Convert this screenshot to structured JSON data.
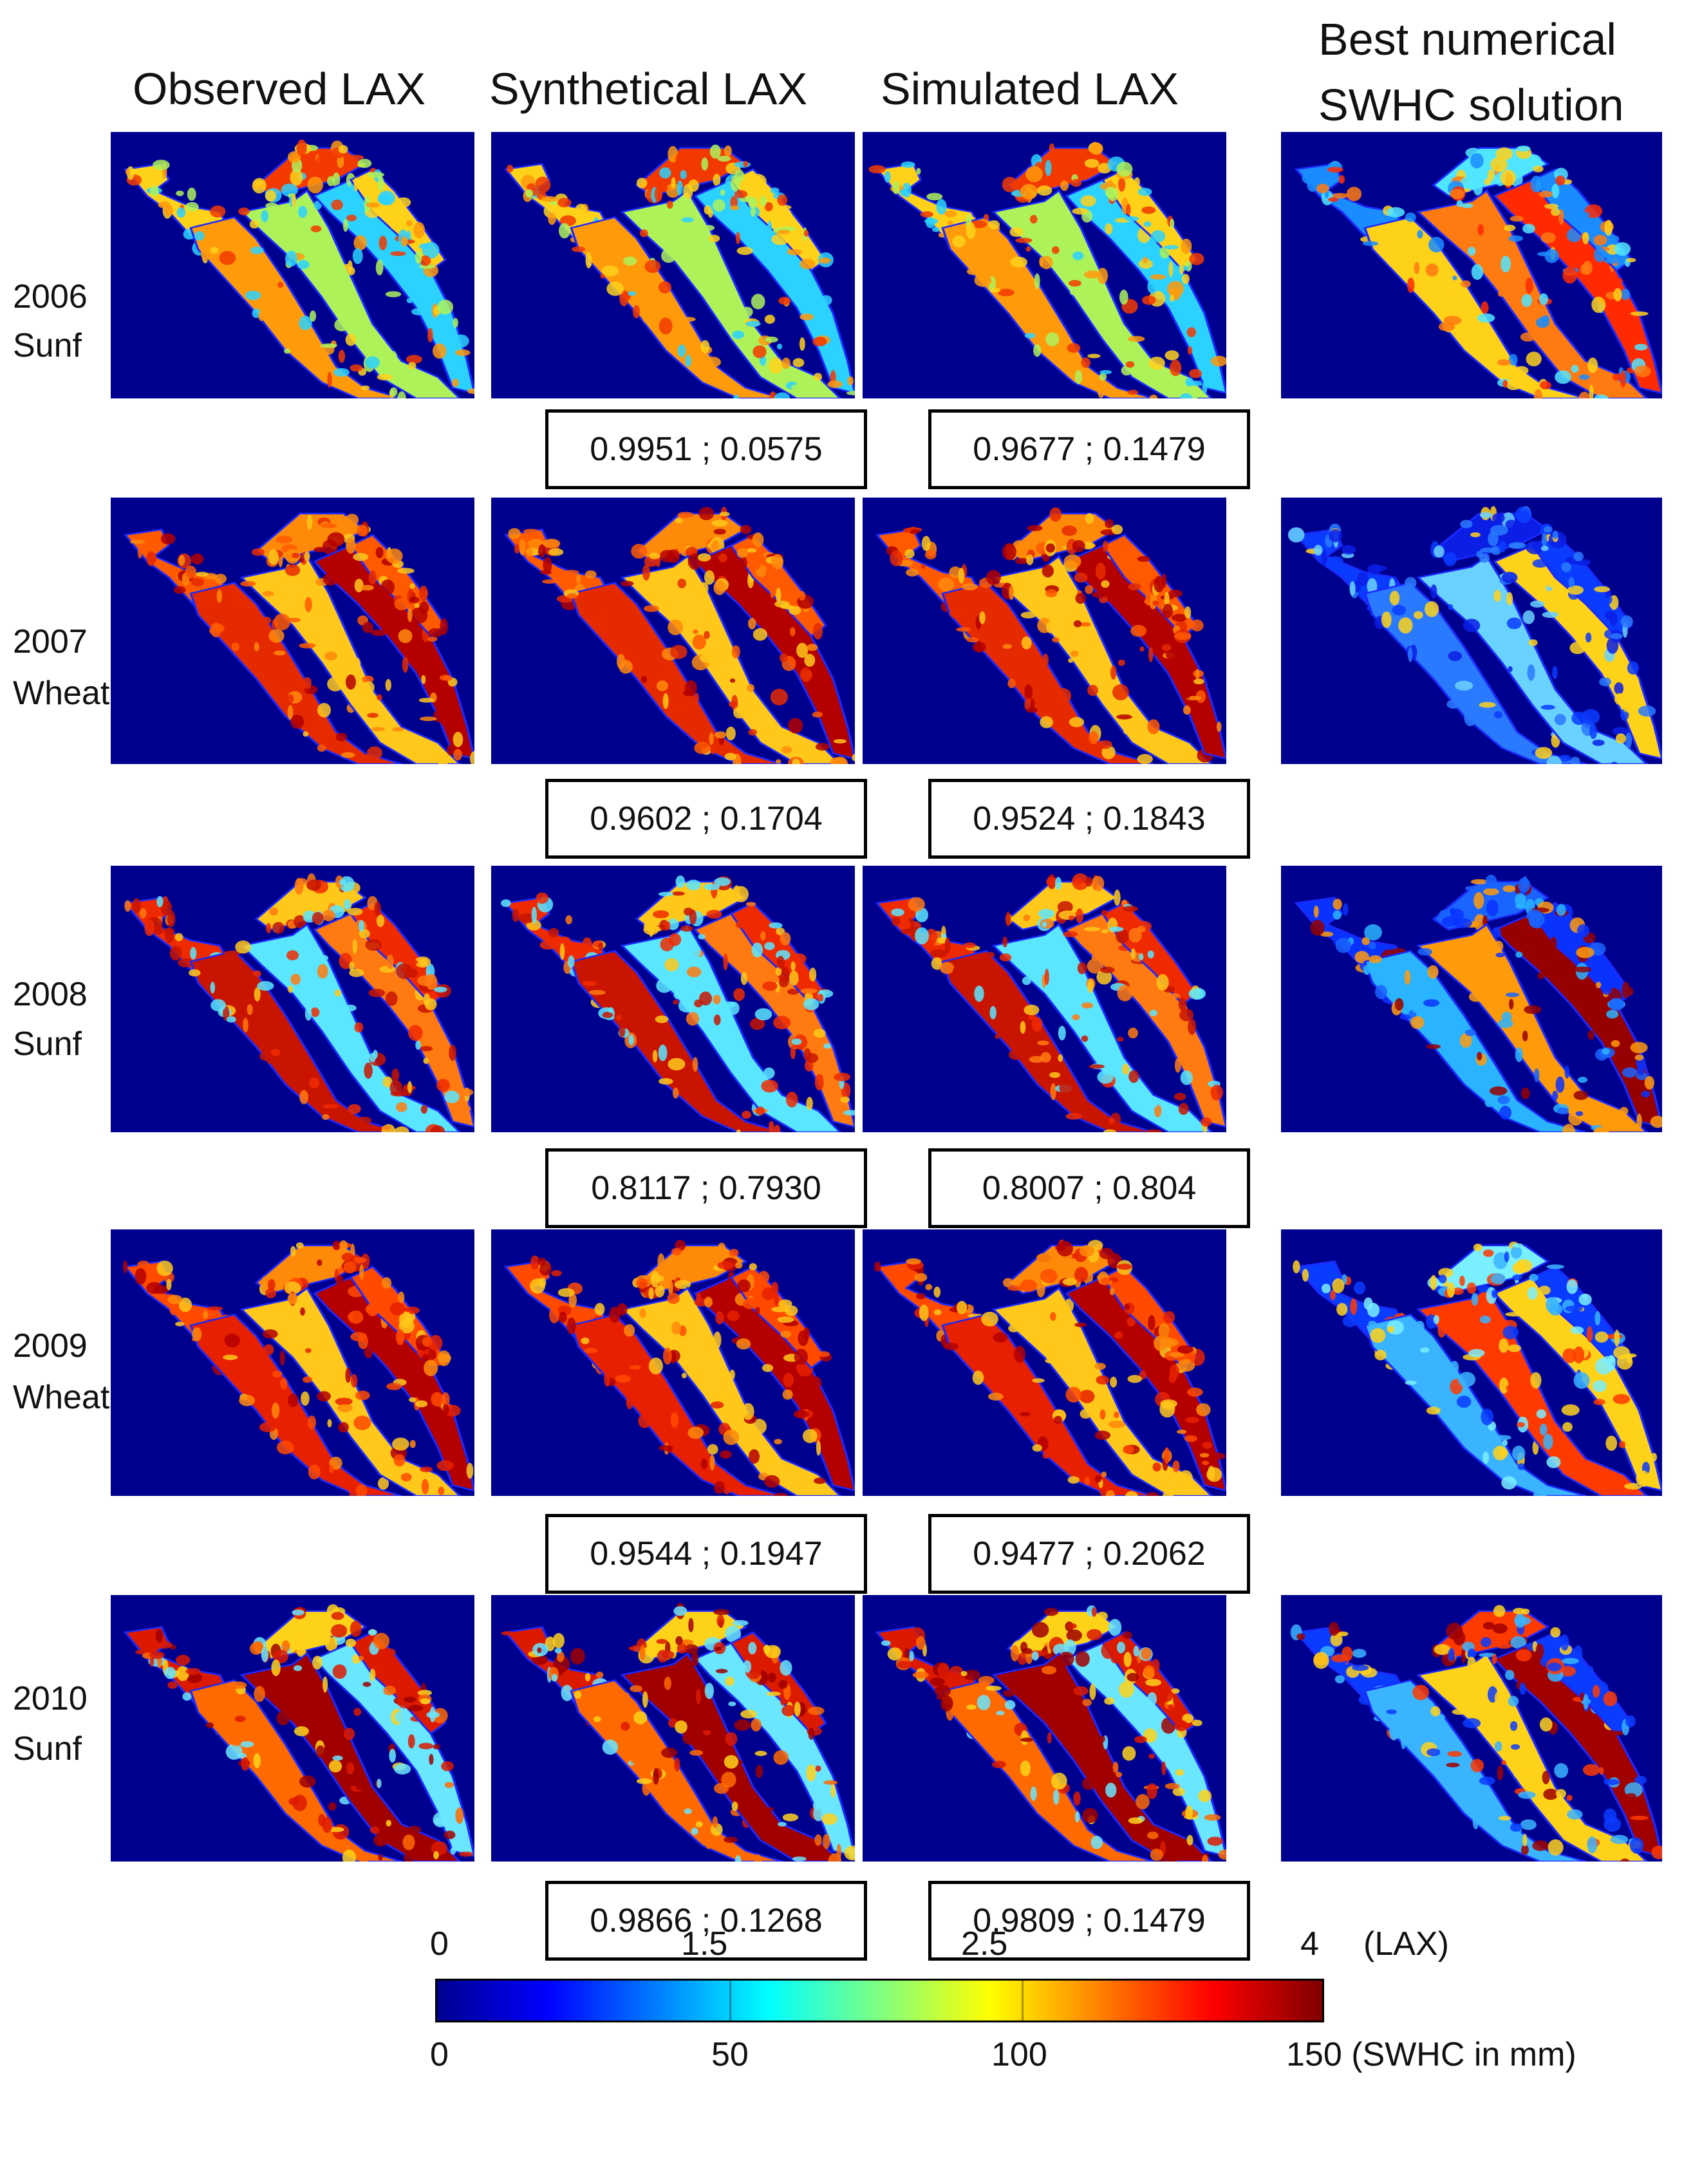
{
  "columns": [
    "Observed LAX",
    "Synthetical LAX",
    "Simulated LAX"
  ],
  "swhc_header": {
    "line1": "Best numerical",
    "line2": "SWHC solution"
  },
  "rows": [
    {
      "year": "2006",
      "crop": "Sunf",
      "synthetical_metrics": "0.9951 ; 0.0575",
      "simulated_metrics": "0.9677 ; 0.1479",
      "lax_palette": [
        "#ffd21a",
        "#ff9a0a",
        "#f23a00",
        "#aef25a",
        "#2cd2ff"
      ],
      "swhc_palette": [
        "#1a8cff",
        "#ffd21a",
        "#50e6ff",
        "#ff7a10",
        "#ff2a00"
      ]
    },
    {
      "year": "2007",
      "crop": "Wheat",
      "synthetical_metrics": "0.9602 ; 0.1704",
      "simulated_metrics": "0.9524 ; 0.1843",
      "lax_palette": [
        "#ff5a00",
        "#e62a00",
        "#ff8a0a",
        "#ffc81a",
        "#b40000"
      ],
      "swhc_palette": [
        "#0a3cff",
        "#2a7aff",
        "#0a1ee6",
        "#6ad2ff",
        "#ffd21a"
      ]
    },
    {
      "year": "2008",
      "crop": "Sunf",
      "synthetical_metrics": "0.8117 ; 0.7930",
      "simulated_metrics": "0.8007 ; 0.804",
      "lax_palette": [
        "#f02a00",
        "#c81400",
        "#ffc81a",
        "#5ae6ff",
        "#ff7a10"
      ],
      "swhc_palette": [
        "#0a32ff",
        "#2ab4ff",
        "#1a64ff",
        "#ff9a0a",
        "#960000"
      ]
    },
    {
      "year": "2009",
      "crop": "Wheat",
      "synthetical_metrics": "0.9544 ; 0.1947",
      "simulated_metrics": "0.9477 ; 0.2062",
      "lax_palette": [
        "#ff4a00",
        "#e62000",
        "#ff8a0a",
        "#ffc81a",
        "#b40000"
      ],
      "swhc_palette": [
        "#0a3cff",
        "#3ab4ff",
        "#7af0ff",
        "#ff3a00",
        "#ffd21a"
      ]
    },
    {
      "year": "2010",
      "crop": "Sunf",
      "synthetical_metrics": "0.9866 ; 0.1268",
      "simulated_metrics": "0.9809 ; 0.1479",
      "lax_palette": [
        "#dc1a00",
        "#ff6a00",
        "#ffd21a",
        "#a00000",
        "#6ae6ff"
      ],
      "swhc_palette": [
        "#0a3cff",
        "#3ab4ff",
        "#ff3a00",
        "#ffd21a",
        "#a00000"
      ]
    }
  ],
  "colorbar": {
    "lax_ticks": [
      "0",
      "1.5",
      "2.5",
      "4"
    ],
    "lax_unit": "(LAX)",
    "swhc_ticks": [
      "0",
      "50",
      "100"
    ],
    "swhc_end_label": "150 (SWHC in mm)",
    "colors": [
      "#00008f",
      "#0000ff",
      "#00ffff",
      "#ffff00",
      "#ff0000",
      "#800000"
    ]
  }
}
